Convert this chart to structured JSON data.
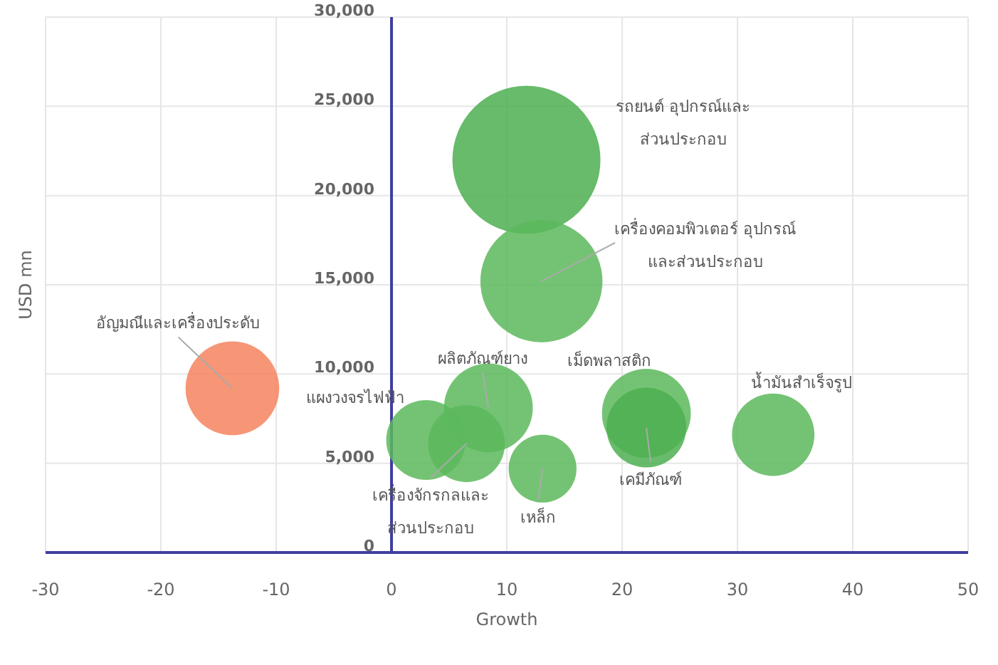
{
  "chart_data": {
    "type": "bubble",
    "xlabel": "Growth",
    "ylabel": "USD mn",
    "xlim": [
      -30,
      50
    ],
    "xticks": [
      -30,
      -20,
      -10,
      0,
      10,
      20,
      30,
      40,
      50
    ],
    "ylim": [
      0,
      30000
    ],
    "yticks": [
      {
        "value": 0,
        "label": "0"
      },
      {
        "value": 5000,
        "label": "5,000"
      },
      {
        "value": 10000,
        "label": "10,000"
      },
      {
        "value": 15000,
        "label": "15,000"
      },
      {
        "value": 20000,
        "label": "20,000"
      },
      {
        "value": 25000,
        "label": "25,000"
      },
      {
        "value": 30000,
        "label": "30,000"
      }
    ],
    "grid": true,
    "series": [
      {
        "name": "อัญมณีและเครื่องประดับ",
        "color": "#f4845f",
        "x": [
          -13.8
        ],
        "values": [
          9200
        ],
        "sizes": [
          0.4
        ]
      },
      {
        "name": "รถยนต์ อุปกรณ์และ\nส่วนประกอบ",
        "color": "#4caf50",
        "x": [
          11.7
        ],
        "values": [
          22000
        ],
        "sizes": [
          1
        ]
      },
      {
        "name": "เครื่องคอมพิวเตอร์ อุปกรณ์\nและส่วนประกอบ",
        "color": "#5cb85c",
        "x": [
          13
        ],
        "values": [
          15200
        ],
        "sizes": [
          0.68
        ]
      },
      {
        "name": "ผลิตภัณฑ์ยาง",
        "color": "#5cb85c",
        "x": [
          8.4
        ],
        "values": [
          8100
        ],
        "sizes": [
          0.36
        ]
      },
      {
        "name": "แผงวงจรไฟฟ้า",
        "color": "#5cb85c",
        "x": [
          3
        ],
        "values": [
          6300
        ],
        "sizes": [
          0.29
        ]
      },
      {
        "name": "เครื่องจักรกลและ\nส่วนประกอบ",
        "color": "#5cb85c",
        "x": [
          6.5
        ],
        "values": [
          6100
        ],
        "sizes": [
          0.27
        ]
      },
      {
        "name": "เหล็ก",
        "color": "#5cb85c",
        "x": [
          13.1
        ],
        "values": [
          4700
        ],
        "sizes": [
          0.21
        ]
      },
      {
        "name": "เม็ดพลาสติก",
        "color": "#5cb85c",
        "x": [
          22.1
        ],
        "values": [
          7800
        ],
        "sizes": [
          0.36
        ]
      },
      {
        "name": "เคมีภัณฑ์",
        "color": "#4caf50",
        "x": [
          22.1
        ],
        "values": [
          7000
        ],
        "sizes": [
          0.29
        ]
      },
      {
        "name": "น้ำมันสำเร็จรูป",
        "color": "#5cb85c",
        "x": [
          33.1
        ],
        "values": [
          6600
        ],
        "sizes": [
          0.31
        ]
      }
    ]
  }
}
